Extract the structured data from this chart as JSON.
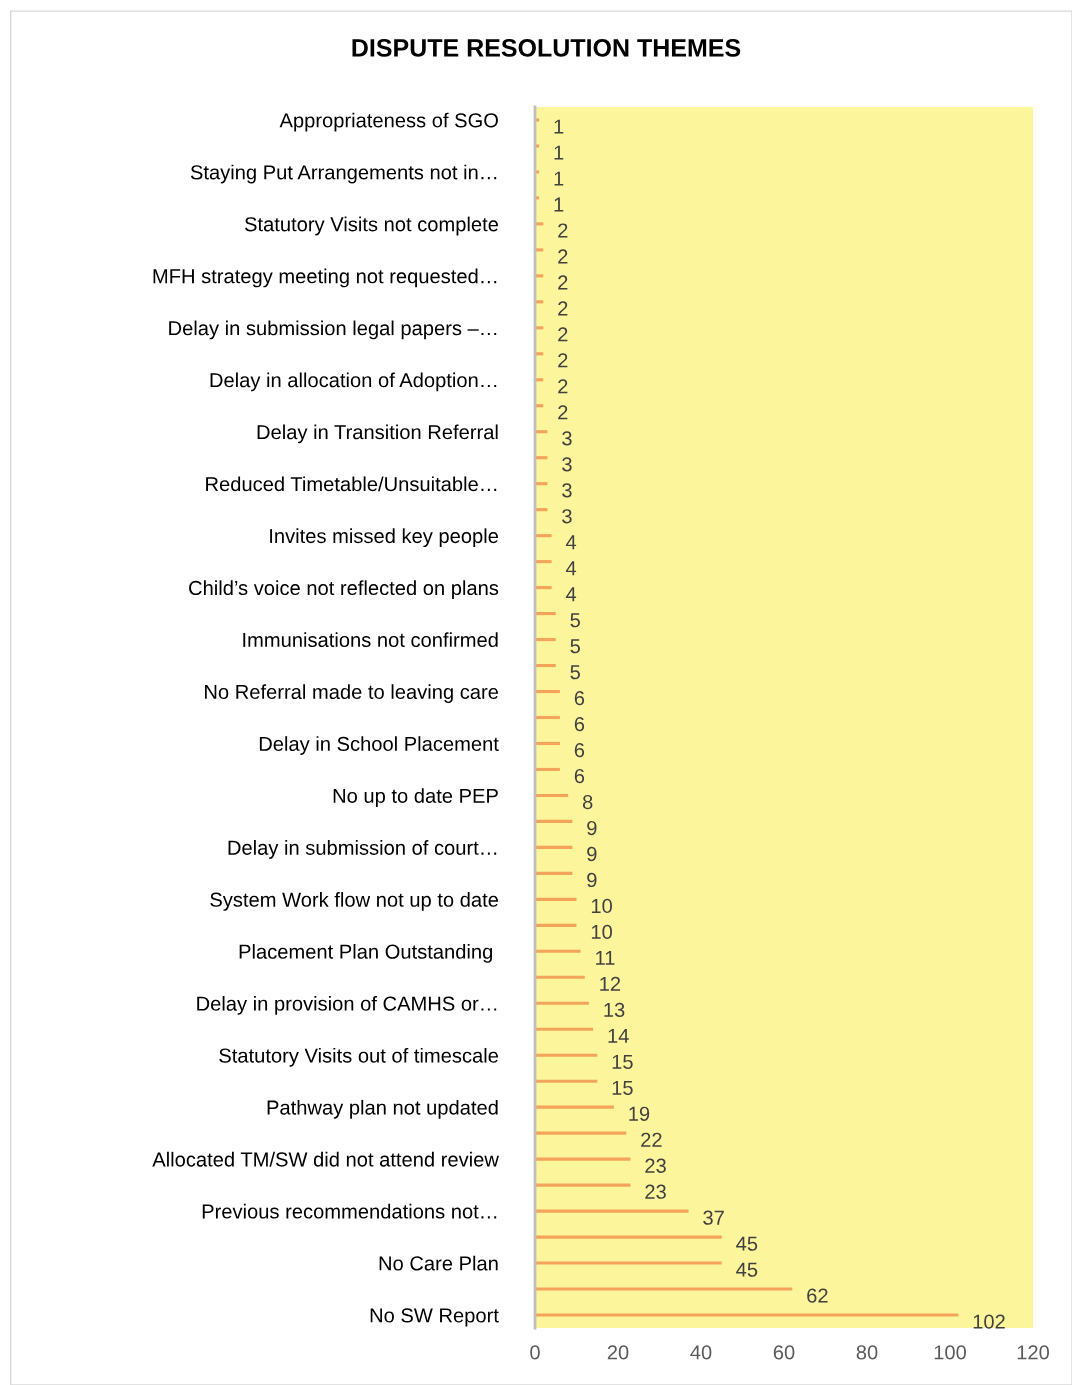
{
  "chart_data": {
    "type": "bar",
    "orientation": "horizontal",
    "title": "DISPUTE RESOLUTION THEMES",
    "categories": [
      "Appropriateness of SGO",
      null,
      "Staying Put Arrangements not in…",
      null,
      "Statutory Visits not complete",
      null,
      "MFH strategy meeting not requested…",
      null,
      "Delay in submission legal papers –…",
      null,
      "Delay in allocation of Adoption…",
      null,
      "Delay in Transition Referral",
      null,
      "Reduced Timetable/Unsuitable…",
      null,
      "Invites missed key people",
      null,
      "Child’s voice not reflected on plans",
      null,
      "Immunisations not confirmed",
      null,
      "No Referral made to leaving care",
      null,
      "Delay in School Placement",
      null,
      "No up to date PEP",
      null,
      "Delay in submission of court…",
      null,
      "System Work flow not up to date",
      null,
      "Placement Plan Outstanding ",
      null,
      "Delay in provision of CAMHS or…",
      null,
      "Statutory Visits out of timescale",
      null,
      "Pathway plan not updated",
      null,
      "Allocated TM/SW did not attend review",
      null,
      "Previous recommendations not…",
      null,
      "No Care Plan",
      null,
      "No SW Report"
    ],
    "values": [
      1,
      1,
      1,
      1,
      2,
      2,
      2,
      2,
      2,
      2,
      2,
      2,
      3,
      3,
      3,
      3,
      4,
      4,
      4,
      5,
      5,
      5,
      6,
      6,
      6,
      6,
      8,
      9,
      9,
      9,
      10,
      10,
      11,
      12,
      13,
      14,
      15,
      15,
      19,
      22,
      23,
      23,
      37,
      45,
      45,
      62,
      102
    ],
    "color": "#f4a35a",
    "xlim": [
      0,
      120
    ],
    "xticks": [
      0,
      20,
      40,
      60,
      80,
      100,
      120
    ],
    "data_labels": true,
    "grid": false,
    "legend": false
  }
}
